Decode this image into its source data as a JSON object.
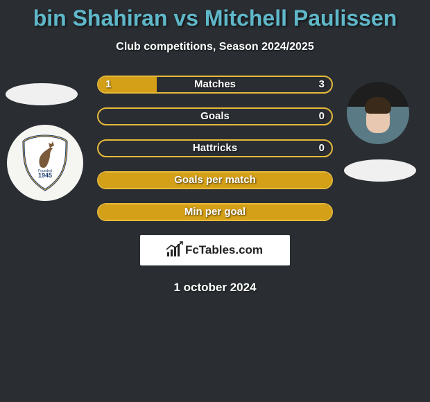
{
  "title": "bin Shahiran vs Mitchell Paulissen",
  "title_color": "#5fb8c9",
  "subtitle": "Club competitions, Season 2024/2025",
  "date": "1 october 2024",
  "logo_text": "FcTables.com",
  "background_color": "#2a2e33",
  "bar_fill_color": "#d4a017",
  "bar_border_color": "#e8ba3a",
  "bar_empty_fill": "transparent",
  "bars": [
    {
      "label": "Matches",
      "left": "1",
      "right": "3",
      "left_pct": 25,
      "show_vals": true
    },
    {
      "label": "Goals",
      "left": "",
      "right": "0",
      "left_pct": 0,
      "show_vals": true
    },
    {
      "label": "Hattricks",
      "left": "",
      "right": "0",
      "left_pct": 0,
      "show_vals": true
    },
    {
      "label": "Goals per match",
      "left": "",
      "right": "",
      "left_pct": 100,
      "show_vals": false
    },
    {
      "label": "Min per goal",
      "left": "",
      "right": "",
      "left_pct": 100,
      "show_vals": false
    }
  ],
  "left": {
    "badge_year": "1945"
  }
}
